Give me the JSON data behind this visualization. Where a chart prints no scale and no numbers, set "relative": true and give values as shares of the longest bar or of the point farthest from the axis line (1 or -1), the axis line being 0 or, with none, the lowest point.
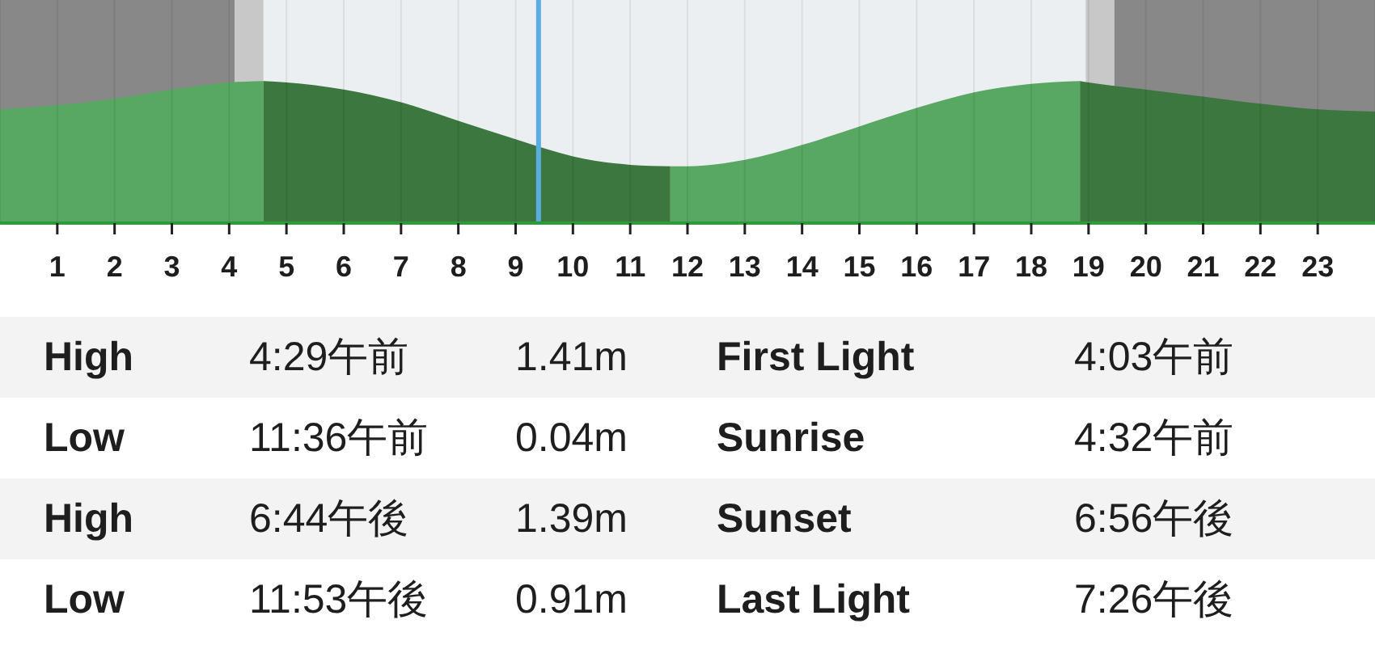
{
  "chart_data": [
    {
      "type": "area",
      "relative": true,
      "x": [
        0,
        1,
        2,
        3,
        4,
        4.6,
        5,
        6,
        7,
        8,
        9,
        10,
        11,
        11.7,
        12,
        13,
        14,
        15,
        16,
        17,
        18,
        18.85,
        19,
        20,
        21,
        22,
        23,
        24
      ],
      "series": [
        {
          "color": "#58a864",
          "values": [
            0.8,
            0.83,
            0.875,
            0.94,
            0.99,
            1.0,
            null,
            null,
            null,
            null,
            null,
            null,
            null,
            0.4,
            0.4,
            0.445,
            0.55,
            0.68,
            0.81,
            0.92,
            0.98,
            1.0,
            null,
            null,
            null,
            null,
            null,
            null
          ]
        },
        {
          "color": "#3b773f",
          "values": [
            null,
            null,
            null,
            null,
            null,
            1.0,
            0.99,
            0.94,
            0.85,
            0.72,
            0.59,
            0.47,
            0.41,
            0.4,
            null,
            null,
            null,
            null,
            null,
            null,
            null,
            1.0,
            0.99,
            0.94,
            0.89,
            0.84,
            0.8,
            0.785
          ]
        }
      ],
      "xlim": [
        0,
        24
      ],
      "xticks": [
        1,
        2,
        3,
        4,
        5,
        6,
        7,
        8,
        9,
        10,
        11,
        12,
        13,
        14,
        15,
        16,
        17,
        18,
        19,
        20,
        21,
        22,
        23
      ],
      "grid": "x",
      "tick_labels": "x",
      "bands": [
        {
          "axis": "x",
          "from": 0,
          "to": 4.1,
          "color": "#888888"
        },
        {
          "axis": "x",
          "from": 4.1,
          "to": 4.6,
          "color": "#c8c8c8"
        },
        {
          "axis": "x",
          "from": 4.6,
          "to": 18.95,
          "color": "#ebeff1"
        },
        {
          "axis": "x",
          "from": 18.95,
          "to": 19.45,
          "color": "#c8c8c8"
        },
        {
          "axis": "x",
          "from": 19.45,
          "to": 24,
          "color": "#888888"
        }
      ],
      "ref_lines": [
        {
          "axis": "x",
          "value": 9.4,
          "color": "#5aade0"
        }
      ]
    },
    {
      "type": "other",
      "annotations": [
        "High",
        "4:29午前",
        "1.41m",
        "First Light",
        "4:03午前",
        "Low",
        "11:36午前",
        "0.04m",
        "Sunrise",
        "4:32午前",
        "High",
        "6:44午後",
        "1.39m",
        "Sunset",
        "6:56午後",
        "Low",
        "11:53午後",
        "0.91m",
        "Last Light",
        "7:26午後"
      ]
    }
  ]
}
